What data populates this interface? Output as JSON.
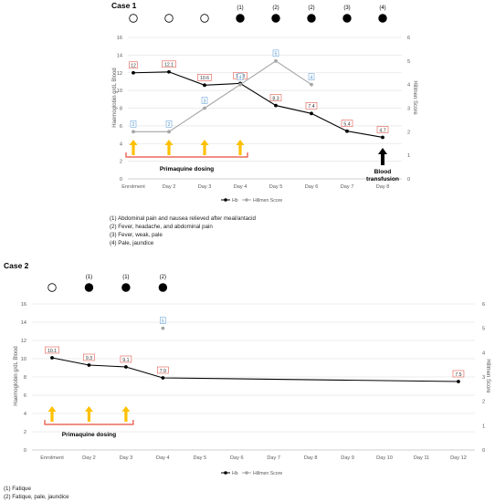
{
  "chart_data": [
    {
      "type": "line",
      "title": "Case 1",
      "categories": [
        "Enrolment",
        "Day 2",
        "Day 3",
        "Day 4",
        "Day 5",
        "Day 6",
        "Day 7",
        "Day 8"
      ],
      "ylabel": "Haemoglobin g/dL Blood",
      "y2label": "Hillmen Score",
      "ylim": [
        0,
        16
      ],
      "y2lim": [
        0,
        6
      ],
      "yticks": [
        0,
        2,
        4,
        6,
        8,
        10,
        12,
        14,
        16
      ],
      "y2ticks": [
        0,
        1,
        2,
        3,
        4,
        5,
        6
      ],
      "series": [
        {
          "name": "Hb",
          "axis": "left",
          "color": "#000000",
          "values": [
            12,
            12.1,
            10.6,
            10.8,
            8.3,
            7.4,
            5.4,
            4.7
          ],
          "labels": [
            "12",
            "12.1",
            "10.6",
            "10.8",
            "8.3",
            "7.4",
            "5.4",
            "4.7"
          ]
        },
        {
          "name": "Hillmen Score",
          "axis": "right",
          "color": "#a6a6a6",
          "values": [
            2,
            2,
            3,
            4,
            5,
            4,
            null,
            null
          ],
          "labels": [
            "2",
            "2",
            "3",
            "4",
            "5",
            "4",
            "",
            ""
          ]
        }
      ],
      "symptom_markers": [
        {
          "filled": false,
          "label": ""
        },
        {
          "filled": false,
          "label": ""
        },
        {
          "filled": false,
          "label": ""
        },
        {
          "filled": true,
          "label": "(1)"
        },
        {
          "filled": true,
          "label": "(2)"
        },
        {
          "filled": true,
          "label": "(2)"
        },
        {
          "filled": true,
          "label": "(3)"
        },
        {
          "filled": true,
          "label": "(4)"
        }
      ],
      "dosing_days": [
        0,
        1,
        2,
        3
      ],
      "dosing_label": "Primaquine dosing",
      "transfusion": {
        "day_index": 7,
        "label_line1": "Blood",
        "label_line2": "transfusion"
      },
      "legend": [
        "Hb",
        "Hillmen Score"
      ],
      "notes": [
        "(1) Abdominal pain and nausea relieved after meal/antacid",
        "(2) Fever, headache, and abdominal pain",
        "(3) Fever, weak, pale",
        "(4) Pale, jaundice"
      ],
      "colors": {
        "dosing_arrow": "#ffc000",
        "dosing_bracket": "#e74c3c",
        "hb_label_border": "#e05a4f",
        "hs_label_border": "#6fa8dc"
      }
    },
    {
      "type": "line",
      "title": "Case 2",
      "categories": [
        "Enrolment",
        "Day 2",
        "Day 3",
        "Day 4",
        "Day 5",
        "Day 6",
        "Day 7",
        "Day 8",
        "Day 9",
        "Day 10",
        "Day 11",
        "Day 12"
      ],
      "ylabel": "Haemoglobin g/dL Blood",
      "y2label": "Hillmen Score",
      "ylim": [
        0,
        16
      ],
      "y2lim": [
        0,
        6
      ],
      "yticks": [
        0,
        2,
        4,
        6,
        8,
        10,
        12,
        14,
        16
      ],
      "y2ticks": [
        0,
        1,
        2,
        3,
        4,
        5,
        6
      ],
      "series": [
        {
          "name": "Hb",
          "axis": "left",
          "color": "#000000",
          "values": [
            10.1,
            9.3,
            9.1,
            7.9,
            null,
            null,
            null,
            null,
            null,
            null,
            null,
            7.5
          ],
          "labels": [
            "10.1",
            "9.3",
            "9.1",
            "7.9",
            "",
            "",
            "",
            "",
            "",
            "",
            "",
            "7.5"
          ]
        },
        {
          "name": "Hillmen Score",
          "axis": "right",
          "color": "#a6a6a6",
          "values": [
            null,
            null,
            null,
            5,
            null,
            null,
            null,
            null,
            null,
            null,
            null,
            null
          ],
          "labels": [
            "",
            "",
            "",
            "5",
            "",
            "",
            "",
            "",
            "",
            "",
            "",
            ""
          ]
        }
      ],
      "symptom_markers": [
        {
          "filled": false,
          "label": ""
        },
        {
          "filled": true,
          "label": "(1)"
        },
        {
          "filled": true,
          "label": "(1)"
        },
        {
          "filled": true,
          "label": "(2)"
        }
      ],
      "dosing_days": [
        0,
        1,
        2
      ],
      "dosing_label": "Primaquine dosing",
      "legend": [
        "Hb",
        "Hillmen Score"
      ],
      "notes": [
        "(1) Fatique",
        "(2) Fatique, pale, jaundice"
      ],
      "colors": {
        "dosing_arrow": "#ffc000",
        "dosing_bracket": "#e74c3c",
        "hb_label_border": "#e05a4f",
        "hs_label_border": "#6fa8dc"
      }
    }
  ]
}
